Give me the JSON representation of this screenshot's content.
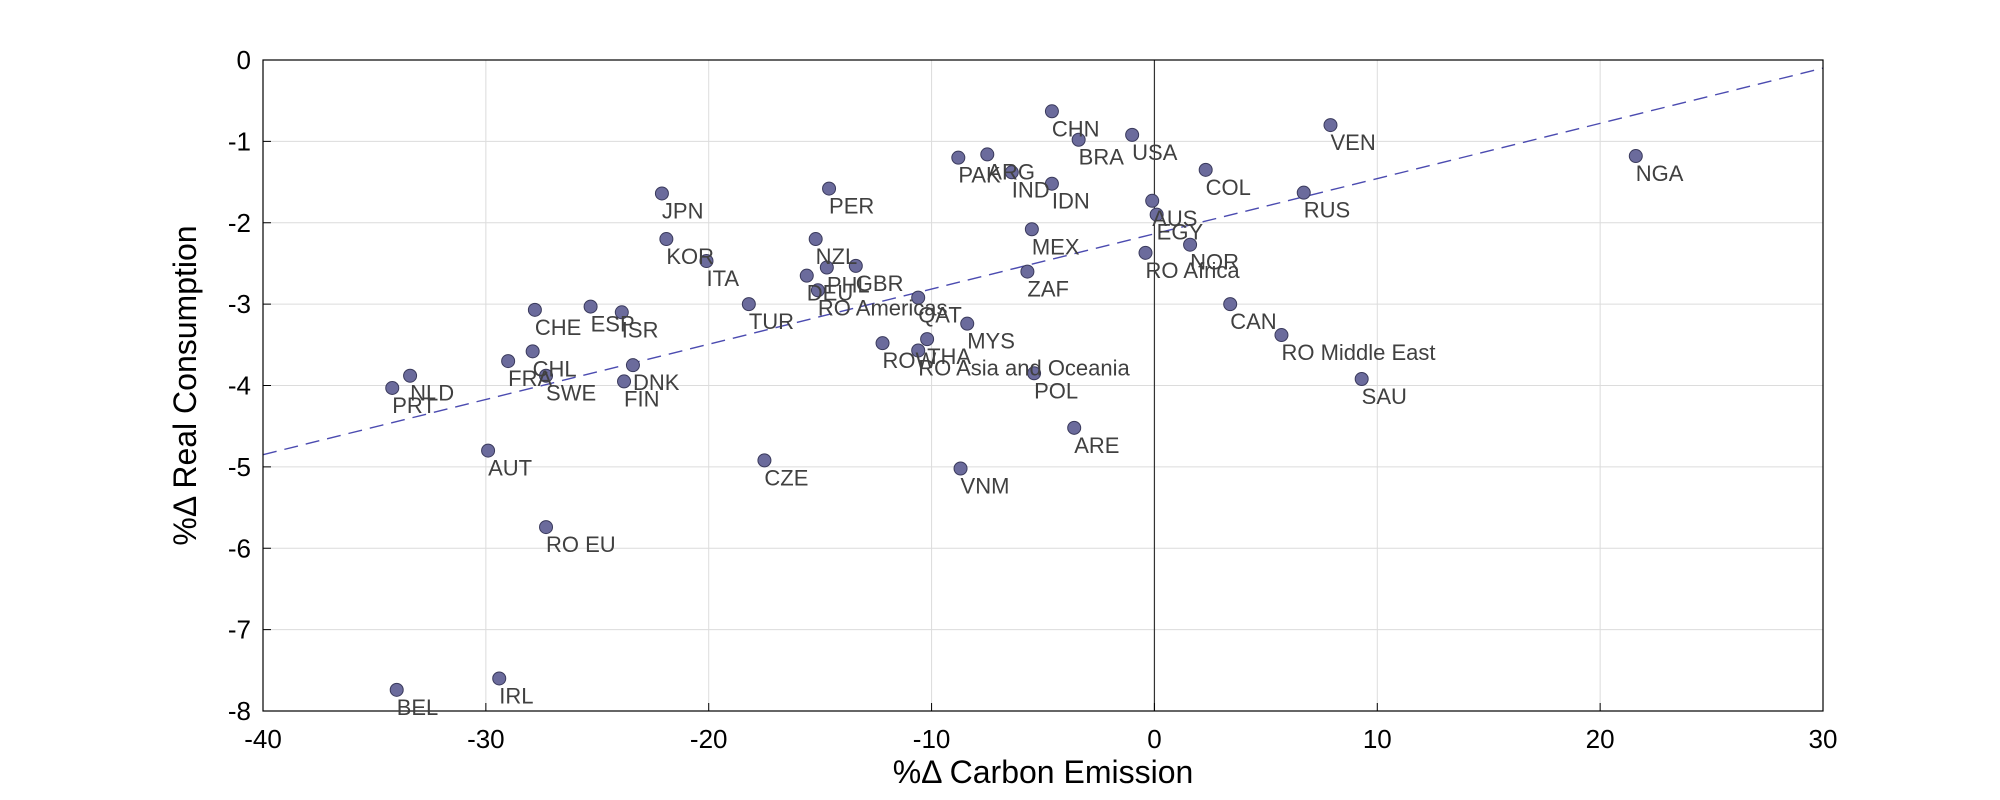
{
  "chart_data": {
    "type": "scatter",
    "title": "",
    "xlabel": "%Δ Carbon Emission",
    "ylabel": "%Δ Real Consumption",
    "xlim": [
      -40,
      30
    ],
    "ylim": [
      -8,
      0
    ],
    "xticks": [
      -40,
      -30,
      -20,
      -10,
      0,
      10,
      20,
      30
    ],
    "yticks": [
      0,
      -1,
      -2,
      -3,
      -4,
      -5,
      -6,
      -7,
      -8
    ],
    "x_tick_labels": [
      "-40",
      "-30",
      "-20",
      "-10",
      "0",
      "10",
      "20",
      "30"
    ],
    "y_tick_labels": [
      "0",
      "-1",
      "-2",
      "-3",
      "-4",
      "-5",
      "-6",
      "-7",
      "-8"
    ],
    "grid": true,
    "zero_line_x": 0,
    "marker_color": "#6b6b9c",
    "marker_edge_color": "#3a3a5c",
    "trend_color": "#4b4bb0",
    "trend_line": {
      "style": "dashed",
      "points": [
        [
          -40,
          -4.85
        ],
        [
          30,
          -0.1
        ]
      ]
    },
    "points": [
      {
        "label": "CHN",
        "x": -4.6,
        "y": -0.63
      },
      {
        "label": "BRA",
        "x": -3.4,
        "y": -0.98
      },
      {
        "label": "USA",
        "x": -1.0,
        "y": -0.92
      },
      {
        "label": "VEN",
        "x": 7.9,
        "y": -0.8
      },
      {
        "label": "NGA",
        "x": 21.6,
        "y": -1.18
      },
      {
        "label": "PAK",
        "x": -8.8,
        "y": -1.2
      },
      {
        "label": "ARG",
        "x": -7.5,
        "y": -1.16
      },
      {
        "label": "IND",
        "x": -6.4,
        "y": -1.38
      },
      {
        "label": "IDN",
        "x": -4.6,
        "y": -1.52
      },
      {
        "label": "COL",
        "x": 2.3,
        "y": -1.35
      },
      {
        "label": "RUS",
        "x": 6.7,
        "y": -1.63
      },
      {
        "label": "JPN",
        "x": -22.1,
        "y": -1.64
      },
      {
        "label": "PER",
        "x": -14.6,
        "y": -1.58
      },
      {
        "label": "AUS",
        "x": -0.1,
        "y": -1.73
      },
      {
        "label": "EGY",
        "x": 0.1,
        "y": -1.9
      },
      {
        "label": "MEX",
        "x": -5.5,
        "y": -2.08
      },
      {
        "label": "KOR",
        "x": -21.9,
        "y": -2.2
      },
      {
        "label": "NZL",
        "x": -15.2,
        "y": -2.2
      },
      {
        "label": "NOR",
        "x": 1.6,
        "y": -2.27
      },
      {
        "label": "RO Africa",
        "x": -0.4,
        "y": -2.37
      },
      {
        "label": "ITA",
        "x": -20.1,
        "y": -2.47
      },
      {
        "label": "GBR",
        "x": -13.4,
        "y": -2.53
      },
      {
        "label": "PHL",
        "x": -14.7,
        "y": -2.55
      },
      {
        "label": "ZAF",
        "x": -5.7,
        "y": -2.6
      },
      {
        "label": "DEU",
        "x": -15.6,
        "y": -2.65
      },
      {
        "label": "RO Americas",
        "x": -15.1,
        "y": -2.83
      },
      {
        "label": "QAT",
        "x": -10.6,
        "y": -2.92
      },
      {
        "label": "CHE",
        "x": -27.8,
        "y": -3.07
      },
      {
        "label": "ESP",
        "x": -25.3,
        "y": -3.03
      },
      {
        "label": "ISR",
        "x": -23.9,
        "y": -3.1
      },
      {
        "label": "TUR",
        "x": -18.2,
        "y": -3.0
      },
      {
        "label": "CAN",
        "x": 3.4,
        "y": -3.0
      },
      {
        "label": "MYS",
        "x": -8.4,
        "y": -3.24
      },
      {
        "label": "RO Middle East",
        "x": 5.7,
        "y": -3.38
      },
      {
        "label": "THA",
        "x": -10.2,
        "y": -3.43
      },
      {
        "label": "ROW",
        "x": -12.2,
        "y": -3.48
      },
      {
        "label": "RO Asia and Oceania",
        "x": -10.6,
        "y": -3.57
      },
      {
        "label": "CHL",
        "x": -27.9,
        "y": -3.58
      },
      {
        "label": "FRA",
        "x": -29.0,
        "y": -3.7
      },
      {
        "label": "DNK",
        "x": -23.4,
        "y": -3.75
      },
      {
        "label": "NLD",
        "x": -33.4,
        "y": -3.88
      },
      {
        "label": "SWE",
        "x": -27.3,
        "y": -3.88
      },
      {
        "label": "POL",
        "x": -5.4,
        "y": -3.85
      },
      {
        "label": "SAU",
        "x": 9.3,
        "y": -3.92
      },
      {
        "label": "FIN",
        "x": -23.8,
        "y": -3.95
      },
      {
        "label": "PRT",
        "x": -34.2,
        "y": -4.03
      },
      {
        "label": "ARE",
        "x": -3.6,
        "y": -4.52
      },
      {
        "label": "AUT",
        "x": -29.9,
        "y": -4.8
      },
      {
        "label": "CZE",
        "x": -17.5,
        "y": -4.92
      },
      {
        "label": "VNM",
        "x": -8.7,
        "y": -5.02
      },
      {
        "label": "RO EU",
        "x": -27.3,
        "y": -5.74
      },
      {
        "label": "IRL",
        "x": -29.4,
        "y": -7.6
      },
      {
        "label": "BEL",
        "x": -34.0,
        "y": -7.74
      }
    ]
  }
}
